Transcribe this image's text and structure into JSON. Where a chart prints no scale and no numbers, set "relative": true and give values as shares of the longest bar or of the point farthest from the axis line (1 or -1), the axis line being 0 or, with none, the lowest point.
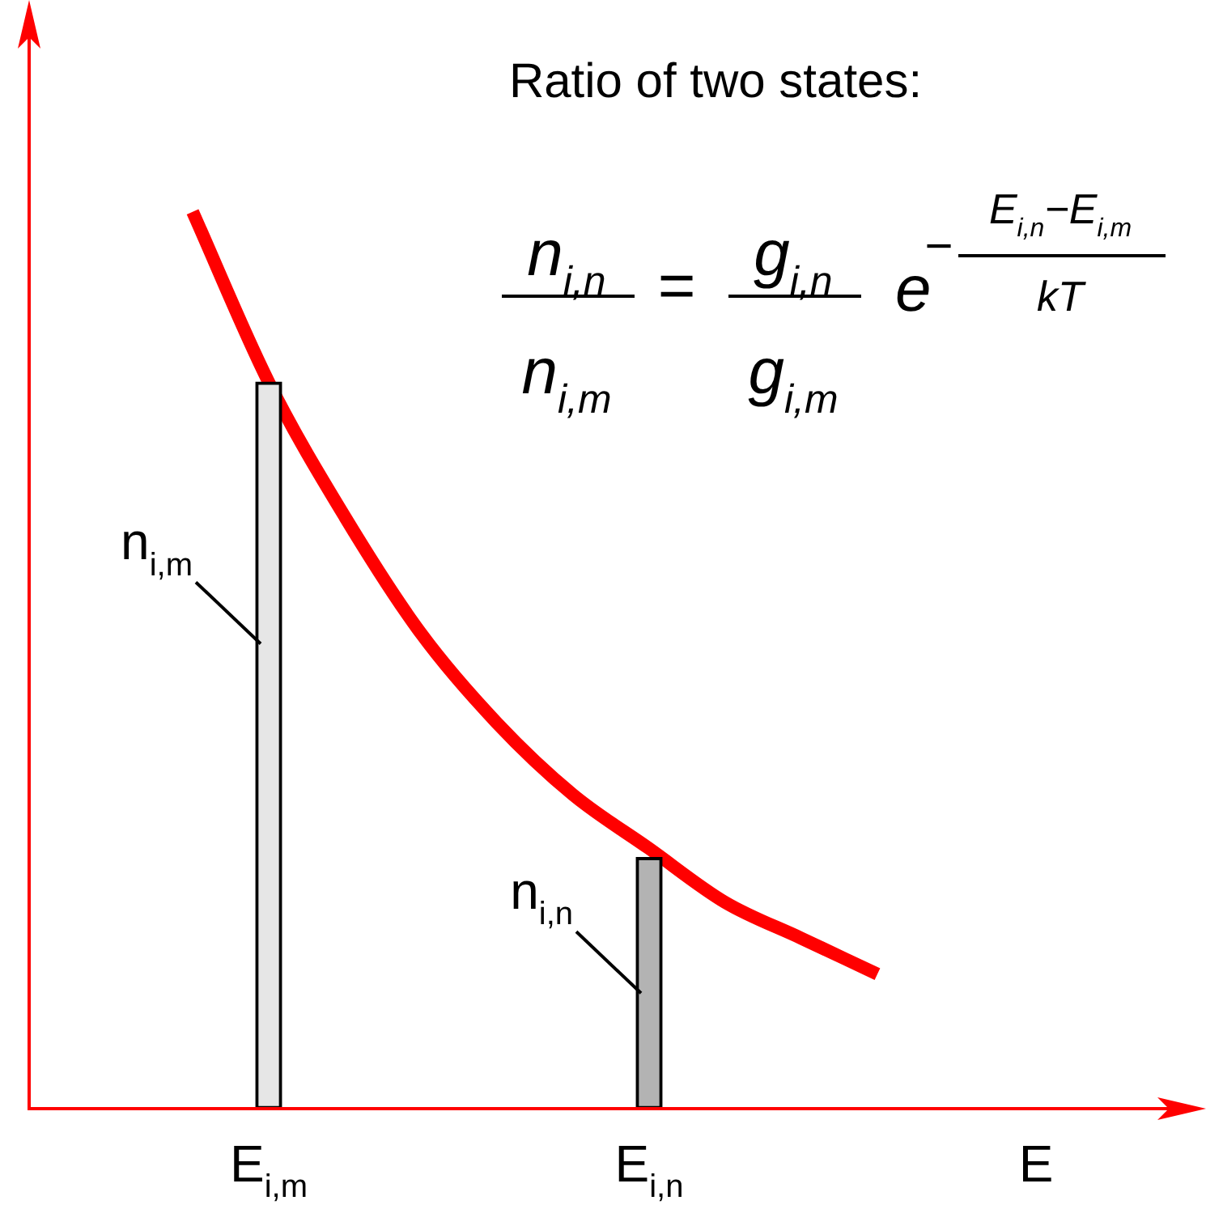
{
  "chart_data": {
    "type": "bar",
    "relative": true,
    "title": "Ratio of two states:",
    "xlabel": "E",
    "legend": false,
    "grid": false,
    "marker": "none",
    "categories": [
      null,
      null,
      null,
      "E$_{i,m}$",
      null,
      null,
      null,
      null,
      "E$_{i,n}$",
      null,
      null,
      null,
      null,
      null,
      null
    ],
    "series": [
      {
        "colors": [
          null,
          null,
          null,
          "#e6e6e6",
          null,
          null,
          null,
          null,
          "#b3b3b3",
          null,
          null,
          null,
          null,
          null,
          null
        ],
        "values": [
          null,
          null,
          null,
          0.81,
          null,
          null,
          null,
          null,
          0.28,
          null,
          null,
          null,
          null,
          null,
          null
        ]
      },
      {
        "type": "line",
        "color": "#ff0000",
        "values": [
          null,
          null,
          1.0,
          0.81,
          0.66,
          0.53,
          0.43,
          0.35,
          0.29,
          0.23,
          0.19,
          0.15,
          null,
          null,
          null
        ]
      }
    ],
    "annotations": [
      "n$_{i,m}$",
      "n$_{i,n}$",
      "n$_{i,n}$",
      "n$_{i,m}$",
      "=",
      "g$_{i,n}$",
      "g$_{i,m}$",
      "e",
      "−",
      "E$_{i,n}$−E$_{i,m}$",
      "kT"
    ]
  }
}
